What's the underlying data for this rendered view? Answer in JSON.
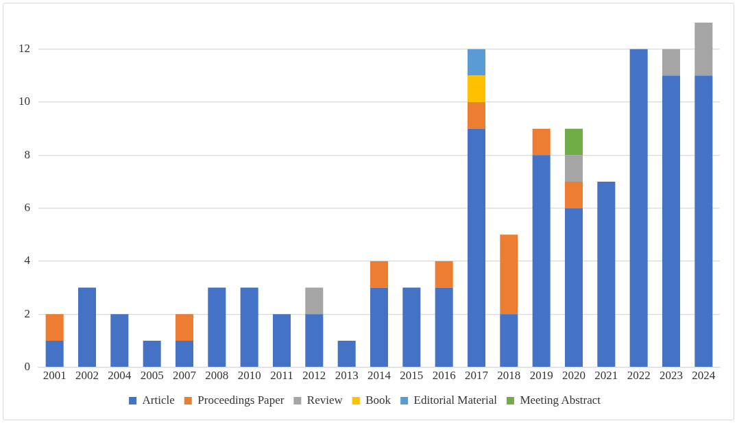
{
  "chart_data": {
    "type": "bar",
    "stacked": true,
    "categories": [
      "2001",
      "2002",
      "2004",
      "2005",
      "2007",
      "2008",
      "2010",
      "2011",
      "2012",
      "2013",
      "2014",
      "2015",
      "2016",
      "2017",
      "2018",
      "2019",
      "2020",
      "2021",
      "2022",
      "2023",
      "2024"
    ],
    "series": [
      {
        "name": "Article",
        "color": "#4472c4",
        "values": [
          1,
          3,
          2,
          1,
          1,
          3,
          3,
          2,
          2,
          1,
          3,
          3,
          3,
          9,
          2,
          8,
          6,
          7,
          12,
          11,
          11
        ]
      },
      {
        "name": "Proceedings Paper",
        "color": "#ed7d31",
        "values": [
          1,
          0,
          0,
          0,
          1,
          0,
          0,
          0,
          0,
          0,
          1,
          0,
          1,
          1,
          3,
          1,
          1,
          0,
          0,
          0,
          0
        ]
      },
      {
        "name": "Review",
        "color": "#a5a5a5",
        "values": [
          0,
          0,
          0,
          0,
          0,
          0,
          0,
          0,
          1,
          0,
          0,
          0,
          0,
          0,
          0,
          0,
          1,
          0,
          0,
          1,
          2
        ]
      },
      {
        "name": "Book",
        "color": "#ffc000",
        "values": [
          0,
          0,
          0,
          0,
          0,
          0,
          0,
          0,
          0,
          0,
          0,
          0,
          0,
          1,
          0,
          0,
          0,
          0,
          0,
          0,
          0
        ]
      },
      {
        "name": "Editorial Material",
        "color": "#5b9bd5",
        "values": [
          0,
          0,
          0,
          0,
          0,
          0,
          0,
          0,
          0,
          0,
          0,
          0,
          0,
          1,
          0,
          0,
          0,
          0,
          0,
          0,
          0
        ]
      },
      {
        "name": "Meeting Abstract",
        "color": "#70ad47",
        "values": [
          0,
          0,
          0,
          0,
          0,
          0,
          0,
          0,
          0,
          0,
          0,
          0,
          0,
          0,
          0,
          0,
          1,
          0,
          0,
          0,
          0
        ]
      }
    ],
    "ylim": [
      0,
      13
    ],
    "yticks": [
      0,
      2,
      4,
      6,
      8,
      10,
      12
    ],
    "grid": "y",
    "legend": "bottom"
  }
}
